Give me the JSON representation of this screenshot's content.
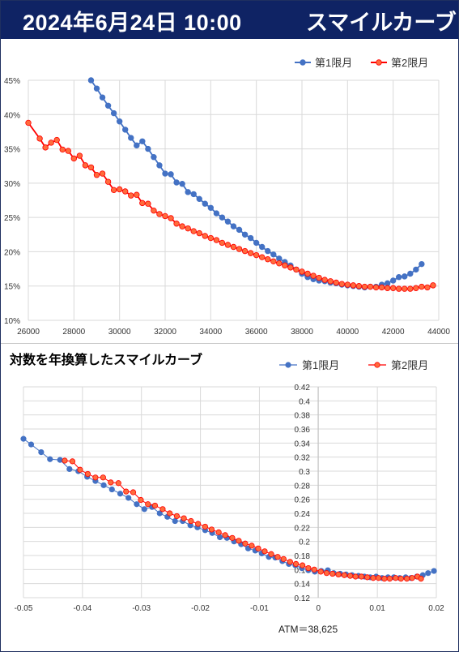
{
  "header": {
    "datetime": "2024年6月24日 10:00",
    "title": "スマイルカーブ"
  },
  "colors": {
    "series1": "#4472c4",
    "series2": "#ff0000",
    "series2_fill": "#ff6b3d",
    "grid": "#d9d9d9",
    "header_bg": "#0f2364"
  },
  "chart_data": [
    {
      "type": "line",
      "title": "",
      "xlabel": "",
      "ylabel": "",
      "xlim": [
        26000,
        44000
      ],
      "ylim": [
        10,
        45
      ],
      "xticks": [
        "26000",
        "28000",
        "30000",
        "32000",
        "34000",
        "36000",
        "38000",
        "40000",
        "42000",
        "44000"
      ],
      "yticks": [
        "10%",
        "15%",
        "20%",
        "25%",
        "30%",
        "35%",
        "40%",
        "45%"
      ],
      "legend_position": "top-right",
      "series": [
        {
          "name": "第1限月",
          "x": [
            28750,
            29000,
            29250,
            29500,
            29750,
            30000,
            30250,
            30500,
            30750,
            31000,
            31250,
            31500,
            31750,
            32000,
            32250,
            32500,
            32750,
            33000,
            33250,
            33500,
            33750,
            34000,
            34250,
            34500,
            34750,
            35000,
            35250,
            35500,
            35750,
            36000,
            36250,
            36500,
            36750,
            37000,
            37250,
            37500,
            37750,
            38000,
            38250,
            38500,
            38750,
            39000,
            39250,
            39500,
            39750,
            40000,
            40250,
            40500,
            40750,
            41000,
            41250,
            41500,
            41750,
            42000,
            42250,
            42500,
            42750,
            43000,
            43250
          ],
          "values": [
            45.0,
            43.8,
            42.5,
            41.3,
            40.2,
            39.0,
            37.8,
            36.6,
            35.5,
            36.1,
            35.0,
            33.8,
            32.6,
            31.4,
            31.3,
            30.1,
            29.9,
            28.7,
            28.4,
            27.7,
            27.0,
            26.4,
            25.6,
            25.0,
            24.4,
            23.7,
            23.2,
            22.5,
            22.0,
            21.3,
            20.7,
            20.1,
            19.6,
            19.0,
            18.5,
            18.0,
            17.4,
            16.8,
            16.3,
            16.0,
            15.8,
            15.7,
            15.5,
            15.4,
            15.2,
            15.1,
            15.0,
            14.9,
            14.8,
            14.9,
            14.9,
            15.2,
            15.4,
            15.8,
            16.3,
            16.4,
            16.8,
            17.4,
            18.2
          ]
        },
        {
          "name": "第2限月",
          "x": [
            26000,
            26500,
            26750,
            27000,
            27250,
            27500,
            27750,
            28000,
            28250,
            28500,
            28750,
            29000,
            29250,
            29500,
            29750,
            30000,
            30250,
            30500,
            30750,
            31000,
            31250,
            31500,
            31750,
            32000,
            32250,
            32500,
            32750,
            33000,
            33250,
            33500,
            33750,
            34000,
            34250,
            34500,
            34750,
            35000,
            35250,
            35500,
            35750,
            36000,
            36250,
            36500,
            36750,
            37000,
            37250,
            37500,
            37750,
            38000,
            38250,
            38500,
            38750,
            39000,
            39250,
            39500,
            39750,
            40000,
            40250,
            40500,
            40750,
            41000,
            41250,
            41500,
            41750,
            42000,
            42250,
            42500,
            42750,
            43000,
            43250,
            43500,
            43750
          ],
          "values": [
            38.8,
            36.5,
            35.2,
            35.9,
            36.3,
            34.9,
            34.7,
            33.6,
            34.0,
            32.6,
            32.3,
            31.2,
            31.4,
            30.2,
            29.0,
            29.1,
            28.8,
            28.2,
            28.3,
            27.1,
            27.0,
            26.0,
            25.5,
            25.2,
            24.9,
            24.1,
            23.7,
            23.4,
            23.0,
            22.7,
            22.3,
            22.0,
            21.7,
            21.3,
            21.0,
            20.7,
            20.4,
            20.1,
            19.8,
            19.5,
            19.2,
            18.9,
            18.6,
            18.3,
            18.0,
            17.7,
            17.4,
            17.1,
            16.8,
            16.5,
            16.2,
            15.9,
            15.7,
            15.5,
            15.3,
            15.2,
            15.1,
            15.0,
            14.9,
            14.9,
            14.8,
            14.8,
            14.7,
            14.7,
            14.6,
            14.6,
            14.6,
            14.7,
            14.9,
            14.8,
            15.1
          ]
        }
      ]
    },
    {
      "type": "scatter",
      "title": "対数を年換算したスマイルカーブ",
      "xlabel": "",
      "ylabel": "",
      "xlim": [
        -0.05,
        0.02
      ],
      "ylim": [
        0.12,
        0.42
      ],
      "xticks": [
        "-0.05",
        "-0.04",
        "-0.03",
        "-0.02",
        "-0.01",
        "0",
        "0.01",
        "0.02"
      ],
      "yticks": [
        "0.12",
        "0.14",
        "0.16",
        "0.18",
        "0.2",
        "0.22",
        "0.24",
        "0.26",
        "0.28",
        "0.3",
        "0.32",
        "0.34",
        "0.36",
        "0.38",
        "0.4",
        "0.42"
      ],
      "legend_position": "top-right",
      "annotation": "ATM＝38,625",
      "series": [
        {
          "name": "第1限月",
          "x": [
            -0.05,
            -0.0487,
            -0.047,
            -0.0455,
            -0.0438,
            -0.0422,
            -0.0407,
            -0.0392,
            -0.0378,
            -0.0364,
            -0.035,
            -0.0336,
            -0.0322,
            -0.0308,
            -0.0295,
            -0.0282,
            -0.0269,
            -0.0256,
            -0.0243,
            -0.023,
            -0.0217,
            -0.0205,
            -0.0192,
            -0.018,
            -0.0167,
            -0.0155,
            -0.0143,
            -0.0131,
            -0.0119,
            -0.0107,
            -0.0096,
            -0.0084,
            -0.0073,
            -0.0061,
            -0.005,
            -0.0039,
            -0.0028,
            -0.0017,
            -0.0006,
            0.0005,
            0.0016,
            0.0026,
            0.0037,
            0.0047,
            0.0057,
            0.0068,
            0.0078,
            0.0088,
            0.0098,
            0.0108,
            0.0118,
            0.0128,
            0.0138,
            0.0148,
            0.0157,
            0.0167,
            0.0177,
            0.0186,
            0.0196
          ],
          "values": [
            0.346,
            0.338,
            0.327,
            0.317,
            0.316,
            0.303,
            0.3,
            0.292,
            0.286,
            0.28,
            0.274,
            0.268,
            0.262,
            0.253,
            0.246,
            0.249,
            0.24,
            0.235,
            0.229,
            0.229,
            0.223,
            0.22,
            0.216,
            0.212,
            0.206,
            0.205,
            0.2,
            0.196,
            0.19,
            0.187,
            0.183,
            0.178,
            0.177,
            0.172,
            0.168,
            0.166,
            0.162,
            0.159,
            0.157,
            0.158,
            0.159,
            0.155,
            0.154,
            0.153,
            0.152,
            0.151,
            0.15,
            0.149,
            0.15,
            0.148,
            0.149,
            0.149,
            0.148,
            0.149,
            0.148,
            0.15,
            0.152,
            0.155,
            0.158
          ]
        },
        {
          "name": "第2限月",
          "x": [
            -0.043,
            -0.0417,
            -0.0404,
            -0.0391,
            -0.0378,
            -0.0365,
            -0.0352,
            -0.0339,
            -0.0326,
            -0.0314,
            -0.0301,
            -0.0289,
            -0.0277,
            -0.0264,
            -0.0252,
            -0.024,
            -0.0228,
            -0.0216,
            -0.0204,
            -0.0192,
            -0.0181,
            -0.0169,
            -0.0158,
            -0.0146,
            -0.0135,
            -0.0124,
            -0.0113,
            -0.0102,
            -0.0091,
            -0.008,
            -0.0069,
            -0.0059,
            -0.0048,
            -0.0038,
            -0.0027,
            -0.0017,
            -0.0007,
            0.0004,
            0.0014,
            0.0024,
            0.0034,
            0.0044,
            0.0054,
            0.0063,
            0.0073,
            0.0083,
            0.0093,
            0.0102,
            0.0112,
            0.0121,
            0.0131,
            0.014,
            0.015,
            0.0159,
            0.0168,
            0.0174
          ],
          "values": [
            0.315,
            0.314,
            0.302,
            0.296,
            0.291,
            0.291,
            0.284,
            0.283,
            0.271,
            0.27,
            0.259,
            0.253,
            0.251,
            0.246,
            0.24,
            0.236,
            0.233,
            0.229,
            0.225,
            0.221,
            0.217,
            0.213,
            0.209,
            0.205,
            0.201,
            0.197,
            0.194,
            0.19,
            0.186,
            0.182,
            0.178,
            0.175,
            0.171,
            0.168,
            0.166,
            0.162,
            0.16,
            0.157,
            0.155,
            0.154,
            0.153,
            0.152,
            0.151,
            0.15,
            0.15,
            0.149,
            0.148,
            0.148,
            0.147,
            0.147,
            0.148,
            0.147,
            0.147,
            0.148,
            0.15,
            0.147
          ]
        }
      ]
    }
  ]
}
